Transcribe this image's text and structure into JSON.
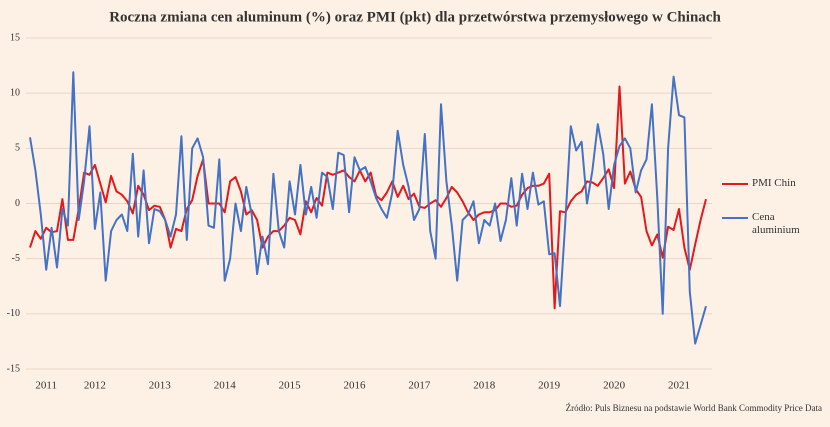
{
  "chart_data": {
    "type": "line",
    "title": "Roczna zmiana cen aluminum (%) oraz PMI (pkt) dla przetwórstwa przemysłowego w Chinach",
    "source": "Źródło: Puls Biznesu na podstawie World Bank Commodity Price Data",
    "categories": [
      null,
      null,
      null,
      "2011",
      null,
      null,
      null,
      null,
      null,
      null,
      null,
      null,
      "2012",
      null,
      null,
      null,
      null,
      null,
      null,
      null,
      null,
      null,
      null,
      null,
      "2013",
      null,
      null,
      null,
      null,
      null,
      null,
      null,
      null,
      null,
      null,
      null,
      "2014",
      null,
      null,
      null,
      null,
      null,
      null,
      null,
      null,
      null,
      null,
      null,
      "2015",
      null,
      null,
      null,
      null,
      null,
      null,
      null,
      null,
      null,
      null,
      null,
      "2016",
      null,
      null,
      null,
      null,
      null,
      null,
      null,
      null,
      null,
      null,
      null,
      "2017",
      null,
      null,
      null,
      null,
      null,
      null,
      null,
      null,
      null,
      null,
      null,
      "2018",
      null,
      null,
      null,
      null,
      null,
      null,
      null,
      null,
      null,
      null,
      null,
      "2019",
      null,
      null,
      null,
      null,
      null,
      null,
      null,
      null,
      null,
      null,
      null,
      "2020",
      null,
      null,
      null,
      null,
      null,
      null,
      null,
      null,
      null,
      null,
      null,
      "2021",
      null,
      null,
      null,
      null,
      null
    ],
    "series": [
      {
        "name": "PMI Chin",
        "color": "#e3191c",
        "values": [
          -4,
          -2.5,
          -3.2,
          -2.2,
          -2.6,
          -2.5,
          0.4,
          -3.3,
          -3.3,
          -0.5,
          2.8,
          2.6,
          3.5,
          1.8,
          0.1,
          2.5,
          1.1,
          0.8,
          0.2,
          -0.9,
          1.6,
          0.8,
          -0.6,
          -0.2,
          -0.3,
          -1.5,
          -4,
          -2.3,
          -2.5,
          -0.5,
          0.3,
          2.5,
          4,
          0,
          0,
          0,
          -0.8,
          2,
          2.4,
          1.1,
          -1,
          -0.6,
          -1.5,
          -4,
          -3,
          -2.5,
          -2.5,
          -2,
          -1.3,
          -1.5,
          -2.8,
          0.2,
          -0.8,
          0.5,
          -0.2,
          2.8,
          2.6,
          2.8,
          3,
          2.4,
          2,
          3,
          2,
          2.8,
          0.7,
          0.3,
          1,
          2,
          0.6,
          1.6,
          0.4,
          0.9,
          -0.3,
          -0.4,
          0,
          0.3,
          -0.3,
          0.5,
          1.5,
          1,
          0.2,
          -0.8,
          -1.5,
          -1,
          -0.8,
          -0.8,
          -0.6,
          0,
          0,
          -0.3,
          -0.2,
          0.8,
          1.4,
          1.6,
          1.6,
          1.8,
          2.7,
          -9.5,
          -0.7,
          -0.8,
          0.2,
          0.8,
          1.1,
          2,
          1.9,
          1.6,
          2.3,
          3.1,
          1.4,
          10.6,
          1.8,
          2.9,
          1.3,
          0.6,
          -2.5,
          -3.8,
          -2.8,
          -4.9,
          -2.1,
          -2.4,
          -0.5,
          -4,
          -6,
          -3.7,
          -1.5,
          0.4
        ]
      },
      {
        "name": "Cena aluminium",
        "color": "#4472c4",
        "values": [
          6,
          3,
          -1,
          -6,
          -2.2,
          -5.8,
          -0.5,
          -2,
          11.9,
          -1.5,
          2,
          7,
          -2.3,
          1,
          -7,
          -2.5,
          -1.5,
          -1,
          -2.5,
          4.5,
          -3,
          3,
          -3.6,
          -0.5,
          -0.7,
          -1.5,
          -3,
          -1,
          6.1,
          -3.3,
          5,
          5.9,
          4.2,
          -2,
          -2.2,
          4,
          -7,
          -5,
          0,
          -2.5,
          1.5,
          -1,
          -6.4,
          -3,
          -5.5,
          2.7,
          -2.5,
          -4,
          2,
          -1,
          3.5,
          -1,
          1.5,
          -1.3,
          2.8,
          2.4,
          -0.5,
          4.6,
          4.4,
          -0.8,
          4.2,
          3,
          3.3,
          2,
          0.5,
          -0.5,
          -1.3,
          1,
          6.6,
          3.5,
          1.5,
          -1.5,
          -0.5,
          6.3,
          -2.5,
          -5,
          9,
          2,
          -2,
          -7,
          -1.5,
          -1,
          0.2,
          -3.6,
          -1.5,
          -2,
          0,
          -3.4,
          -1.5,
          2.3,
          -2,
          2.7,
          -0.5,
          2.8,
          -0.1,
          0.2,
          -4.6,
          -4.5,
          -9.3,
          -1.5,
          7,
          4.8,
          5.6,
          0,
          3,
          7.2,
          4.5,
          -0.5,
          3.5,
          5.2,
          5.9,
          5,
          1,
          3,
          4,
          9,
          0.5,
          -10,
          5,
          11.5,
          8,
          7.8,
          -8,
          -12.7,
          -11,
          -9.3
        ]
      }
    ],
    "ylim": [
      -15,
      15
    ],
    "yticks": [
      -15,
      -10,
      -5,
      0,
      5,
      10,
      15
    ],
    "grid": true,
    "legend": "right"
  }
}
